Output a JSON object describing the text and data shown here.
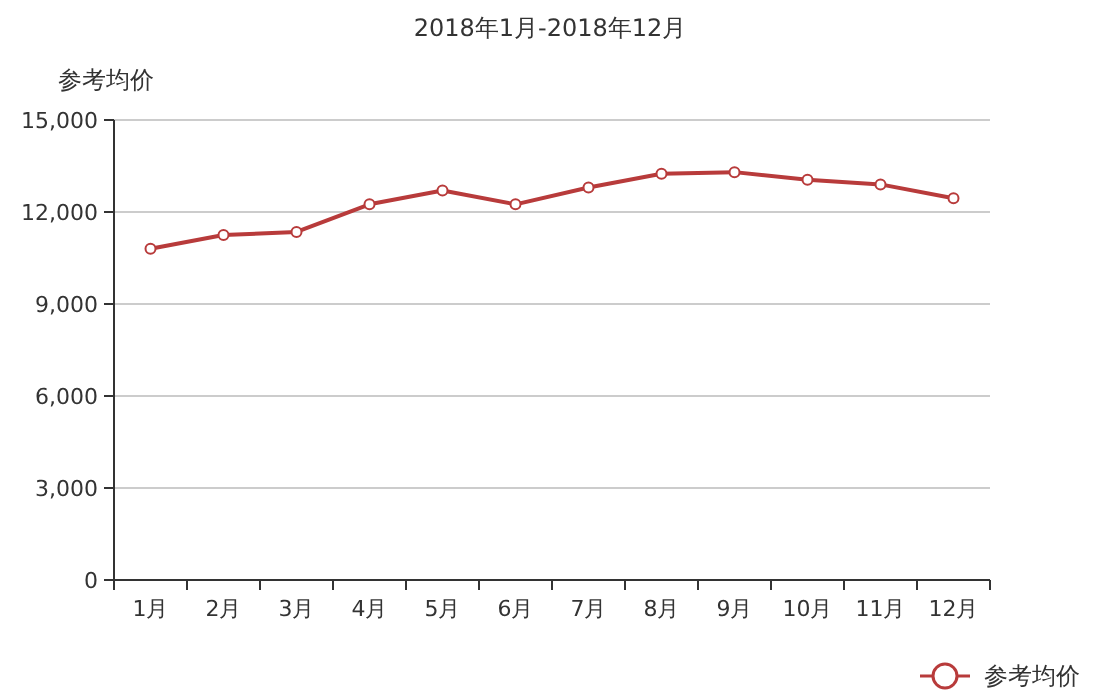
{
  "chart_data": {
    "type": "line",
    "title": "2018年1月-2018年12月",
    "ylabel": "参考均价",
    "categories": [
      "1月",
      "2月",
      "3月",
      "4月",
      "5月",
      "6月",
      "7月",
      "8月",
      "9月",
      "10月",
      "11月",
      "12月"
    ],
    "series": [
      {
        "name": "参考均价",
        "color": "#b83b3b",
        "values": [
          10800,
          11250,
          11350,
          12250,
          12700,
          12250,
          12800,
          13250,
          13300,
          13050,
          12900,
          12450
        ]
      }
    ],
    "ylim": [
      0,
      15000
    ],
    "yticks": [
      {
        "value": 0,
        "label": "0"
      },
      {
        "value": 3000,
        "label": "3,000"
      },
      {
        "value": 6000,
        "label": "6,000"
      },
      {
        "value": 9000,
        "label": "9,000"
      },
      {
        "value": 12000,
        "label": "12,000"
      },
      {
        "value": 15000,
        "label": "15,000"
      }
    ],
    "grid": "y",
    "legend": "bottom right",
    "marker": "circle",
    "line_style": "solid"
  }
}
